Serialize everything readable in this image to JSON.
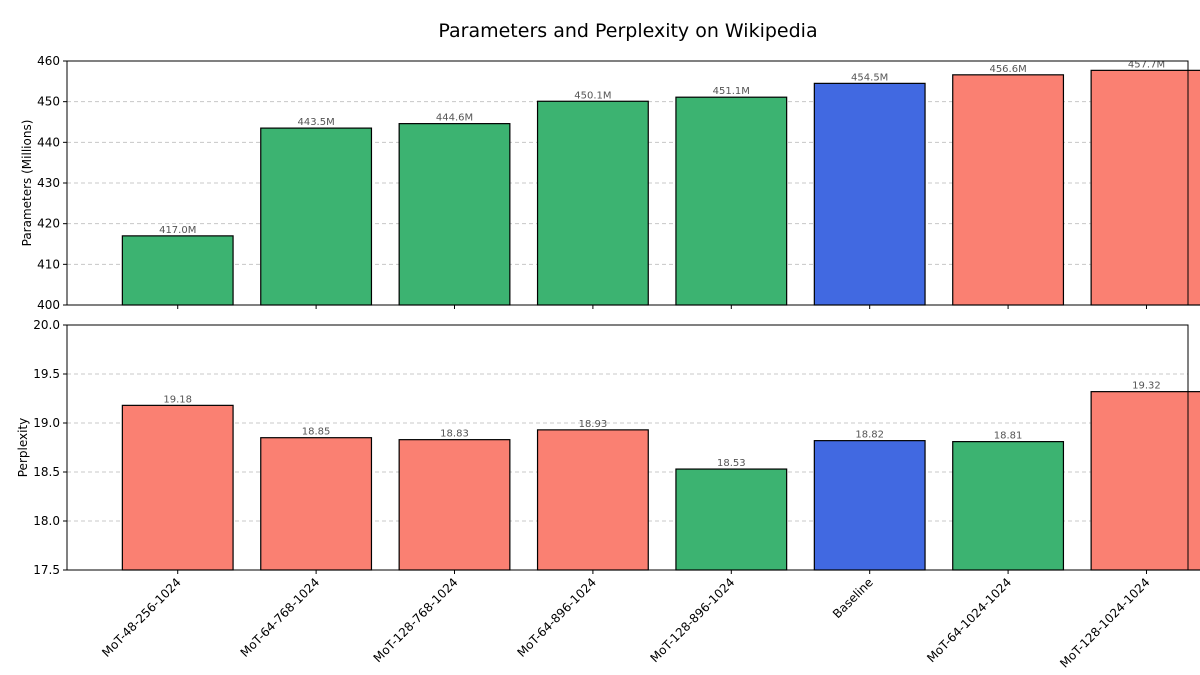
{
  "chart_data": {
    "type": "bar",
    "title": "Parameters and Perplexity on Wikipedia",
    "categories": [
      "MoT-48-256-1024",
      "MoT-64-768-1024",
      "MoT-128-768-1024",
      "MoT-64-896-1024",
      "MoT-128-896-1024",
      "Baseline",
      "MoT-64-1024-1024",
      "MoT-128-1024-1024"
    ],
    "colors": {
      "better": "#3cb371",
      "worse": "#fa8072",
      "baseline": "#4169e1"
    },
    "grid": true,
    "panels": [
      {
        "ylabel": "Parameters (Millions)",
        "ylim": [
          400,
          460
        ],
        "yticks": [
          400,
          410,
          420,
          430,
          440,
          450,
          460
        ],
        "values": [
          417.0,
          443.5,
          444.6,
          450.1,
          451.1,
          454.5,
          456.6,
          457.7
        ],
        "value_labels": [
          "417.0M",
          "443.5M",
          "444.6M",
          "450.1M",
          "451.1M",
          "454.5M",
          "456.6M",
          "457.7M"
        ],
        "bar_colors": [
          "better",
          "better",
          "better",
          "better",
          "better",
          "baseline",
          "worse",
          "worse"
        ]
      },
      {
        "ylabel": "Perplexity",
        "ylim": [
          17.5,
          20.0
        ],
        "yticks": [
          17.5,
          18.0,
          18.5,
          19.0,
          19.5,
          20.0
        ],
        "ytick_labels": [
          "17.5",
          "18.0",
          "18.5",
          "19.0",
          "19.5",
          "20.0"
        ],
        "values": [
          19.18,
          18.85,
          18.83,
          18.93,
          18.53,
          18.82,
          18.81,
          19.32
        ],
        "value_labels": [
          "19.18",
          "18.85",
          "18.83",
          "18.93",
          "18.53",
          "18.82",
          "18.81",
          "19.32"
        ],
        "bar_colors": [
          "worse",
          "worse",
          "worse",
          "worse",
          "better",
          "baseline",
          "better",
          "worse"
        ]
      }
    ]
  }
}
